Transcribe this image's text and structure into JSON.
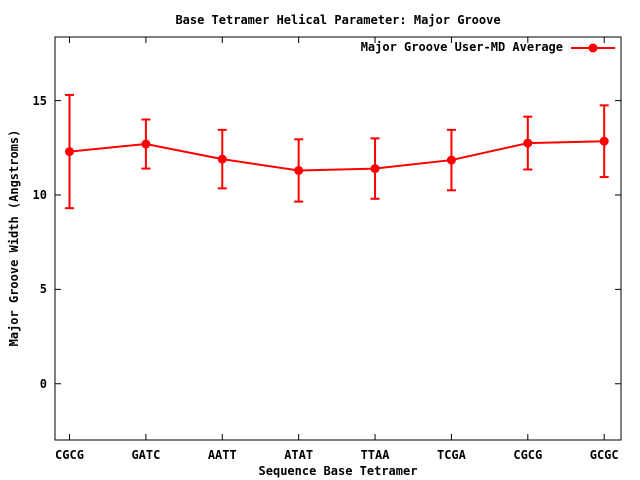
{
  "chart_data": {
    "type": "line",
    "title": "Base Tetramer Helical Parameter: Major Groove",
    "xlabel": "Sequence Base Tetramer",
    "ylabel": "Major Groove Width (Angstroms)",
    "legend": {
      "label": "Major Groove User-MD Average",
      "position": "top-right-inside",
      "marker": "filled-circle-on-line"
    },
    "categories": [
      "CGCG",
      "GATC",
      "AATT",
      "ATAT",
      "TTAA",
      "TCGA",
      "CGCG",
      "GCGC"
    ],
    "series": [
      {
        "name": "Major Groove User-MD Average",
        "values": [
          12.3,
          12.7,
          11.9,
          11.3,
          11.4,
          11.85,
          12.75,
          12.85
        ],
        "error": [
          3.0,
          1.3,
          1.55,
          1.65,
          1.6,
          1.6,
          1.4,
          1.9
        ],
        "color": "#ff0000"
      }
    ],
    "y_ticks": [
      0,
      5,
      10,
      15
    ],
    "ylim": [
      -2.98,
      18.37
    ],
    "xlim": [
      -0.19,
      7.22
    ],
    "grid": false,
    "border": true,
    "tick_style": "inward-mirrored"
  },
  "colors": {
    "background": "#ffffff",
    "foreground": "#000000",
    "accent": "#ff0000"
  }
}
